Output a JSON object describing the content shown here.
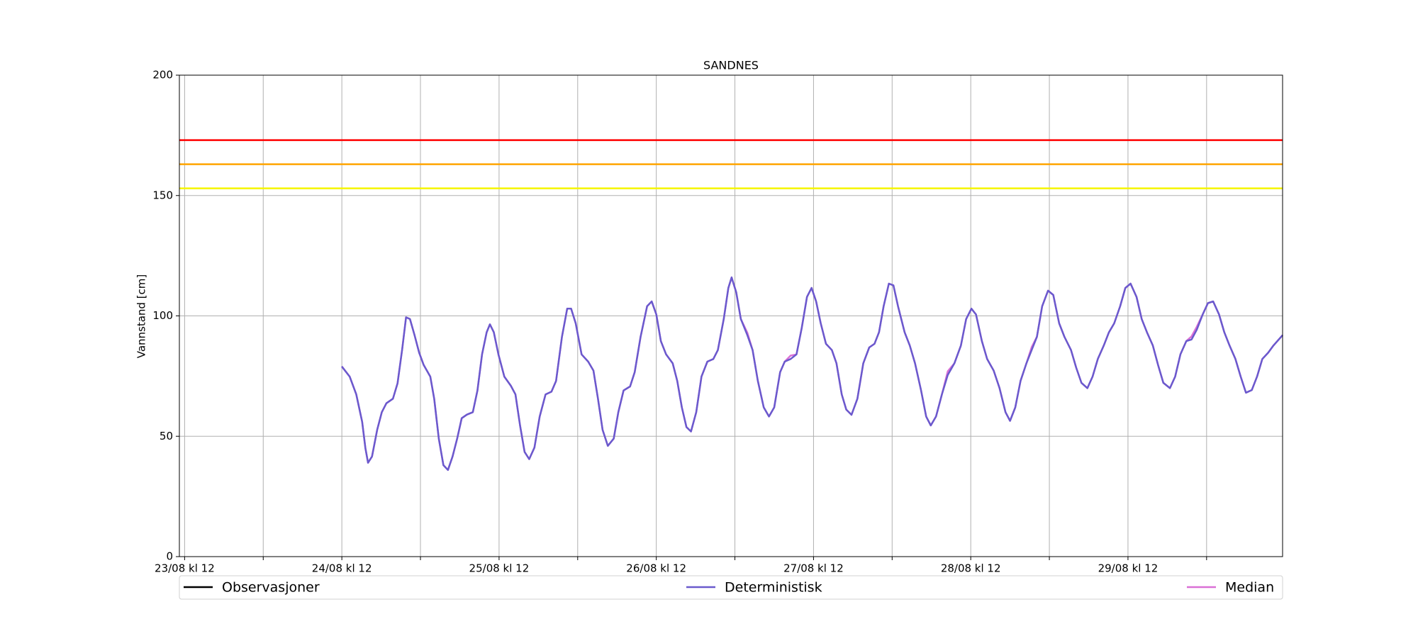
{
  "chart_data": {
    "type": "line",
    "title": "SANDNES",
    "y_label": "Vannstand [cm]",
    "xlim": [
      -0.8,
      167.6
    ],
    "ylim": [
      0,
      200
    ],
    "yticks": [
      0,
      50,
      100,
      150,
      200
    ],
    "xticks": [
      {
        "value": 0,
        "label": "23/08 kl 12"
      },
      {
        "value": 24,
        "label": "24/08 kl 12"
      },
      {
        "value": 48,
        "label": "25/08 kl 12"
      },
      {
        "value": 72,
        "label": "26/08 kl 12"
      },
      {
        "value": 96,
        "label": "27/08 kl 12"
      },
      {
        "value": 120,
        "label": "28/08 kl 12"
      },
      {
        "value": 144,
        "label": "29/08 kl 12"
      }
    ],
    "x_minor_ticks": [
      12,
      36,
      60,
      84,
      108,
      132,
      156
    ],
    "grid": true,
    "legend": "bottom",
    "thresholds": [
      {
        "value": 173,
        "color": "#ff0000"
      },
      {
        "value": 163,
        "color": "#ffa500"
      },
      {
        "value": 153,
        "color": "#f5f500"
      }
    ],
    "x": [
      24,
      25.2,
      26.2,
      27.1,
      27.6,
      28,
      28.6,
      29.4,
      30.1,
      30.8,
      31.8,
      32.5,
      33.2,
      33.8,
      34.4,
      35.1,
      35.8,
      36.5,
      37.5,
      38.1,
      38.8,
      39.5,
      40.2,
      40.9,
      41.6,
      42.3,
      43.1,
      44,
      44.7,
      45.4,
      46.1,
      46.6,
      47.2,
      47.9,
      48.8,
      49.8,
      50.5,
      51.2,
      51.9,
      52.6,
      53.4,
      54.2,
      55.1,
      56,
      56.7,
      57.6,
      58.4,
      59,
      59.7,
      60.6,
      61.6,
      62.4,
      63.1,
      63.8,
      64.6,
      65.5,
      66.2,
      67,
      68,
      68.7,
      69.6,
      70.6,
      71.3,
      72,
      72.7,
      73.5,
      74.5,
      75.2,
      75.9,
      76.6,
      77.3,
      78.1,
      78.9,
      79.8,
      80.7,
      81.4,
      82.3,
      83,
      83.5,
      84.2,
      84.9,
      85.9,
      86.7,
      87.5,
      88.4,
      89.2,
      90,
      90.9,
      91.6,
      92.5,
      93.4,
      94.2,
      95,
      95.7,
      96.4,
      97.1,
      97.9,
      98.8,
      99.5,
      100.3,
      101,
      101.8,
      102.7,
      103.6,
      104.5,
      105.3,
      106,
      106.7,
      107.5,
      108.2,
      108.9,
      109.9,
      110.7,
      111.5,
      112.4,
      113.2,
      113.9,
      114.7,
      115.6,
      116.5,
      117.5,
      118.5,
      119.3,
      120.1,
      120.8,
      121.7,
      122.5,
      123.5,
      124.4,
      125.3,
      126,
      126.8,
      127.6,
      128.5,
      129.3,
      130.1,
      130.9,
      131.8,
      132.6,
      133.5,
      134.3,
      135.3,
      136.1,
      136.9,
      137.8,
      138.6,
      139.4,
      140.3,
      141.1,
      141.9,
      142.8,
      143.6,
      144.4,
      145.3,
      146.1,
      146.9,
      147.8,
      148.6,
      149.4,
      150.4,
      151.2,
      152,
      152.9,
      153.7,
      154.5,
      155.4,
      156.2,
      157,
      157.9,
      158.7,
      159.5,
      160.4,
      161.2,
      162,
      162.9,
      163.7,
      164.5,
      165.4,
      166.2,
      167.6
    ],
    "series": [
      {
        "name": "Observasjoner",
        "color": "#000000",
        "x": [],
        "values": []
      },
      {
        "name": "Median",
        "color": "#da70d6",
        "values": [
          79,
          74.8,
          67.4,
          56,
          45,
          39,
          41.6,
          52.7,
          60,
          63.7,
          65.6,
          72,
          86,
          99.4,
          98.7,
          92,
          84.7,
          79.6,
          74.8,
          65.6,
          49,
          38,
          36,
          41.6,
          49,
          57.5,
          59,
          60,
          69,
          84,
          93.2,
          96.5,
          93.2,
          84,
          74.8,
          71,
          67.4,
          54.5,
          43.5,
          40.5,
          45.3,
          58.2,
          67.4,
          68.5,
          73,
          91.3,
          103,
          103,
          96.9,
          84,
          81,
          77.3,
          65.6,
          52.7,
          46,
          49,
          60,
          69,
          70.7,
          76.6,
          91.3,
          104,
          106,
          100.6,
          89.5,
          84,
          80.3,
          73,
          62,
          53.8,
          52,
          60,
          74.8,
          81,
          82.1,
          85.8,
          98.7,
          111.6,
          116,
          109.8,
          98.7,
          93,
          85.8,
          73,
          62,
          58.2,
          62,
          76.6,
          81,
          83.5,
          84,
          95,
          107.9,
          111.6,
          106,
          96.9,
          88.4,
          85.8,
          80.3,
          67.4,
          61.1,
          58.9,
          65.6,
          80.3,
          86.9,
          88.4,
          93.2,
          104,
          113.4,
          112.7,
          104,
          93.2,
          87.7,
          80.3,
          69.2,
          58.2,
          54.5,
          58.2,
          67.4,
          77,
          80.3,
          87.7,
          98.7,
          103,
          100.6,
          89.5,
          82.1,
          77.3,
          70,
          60,
          56.4,
          62,
          73,
          80.3,
          87,
          91.3,
          104,
          110.5,
          108.7,
          96.9,
          91.3,
          85.8,
          78.5,
          72.2,
          70,
          74.8,
          82.1,
          87.7,
          93.2,
          96.9,
          104,
          111.6,
          113.4,
          107.9,
          98.7,
          93.2,
          87.7,
          79.6,
          72.2,
          70,
          74.8,
          84,
          89.5,
          91.5,
          95.5,
          100.6,
          105.3,
          106,
          100.6,
          93.2,
          87.7,
          82.1,
          74.8,
          68.1,
          69.2,
          74.8,
          82.1,
          84.7,
          87.7,
          92
        ]
      },
      {
        "name": "Deterministisk",
        "color": "#6a5acd",
        "values": [
          79,
          74.8,
          67.4,
          56,
          45,
          39,
          41.6,
          52.7,
          60,
          63.7,
          65.6,
          72,
          86,
          99.4,
          98.7,
          92,
          84.7,
          79.6,
          74.8,
          65.6,
          49,
          38,
          36,
          41.6,
          49,
          57.5,
          59,
          60,
          69,
          84,
          93.2,
          96.5,
          93.2,
          84,
          74.8,
          71,
          67.4,
          54.5,
          43.5,
          40.5,
          45.3,
          58.2,
          67.4,
          68.5,
          73,
          91.3,
          103,
          103,
          96.9,
          84,
          81,
          77.3,
          65.6,
          52.7,
          46,
          49,
          60,
          69,
          70.7,
          76.6,
          91.3,
          104,
          106,
          100.6,
          89.5,
          84,
          80.3,
          73,
          62,
          53.8,
          52,
          60,
          74.8,
          81,
          82.1,
          85.8,
          98.7,
          111.6,
          116,
          109.8,
          98.7,
          92,
          85.8,
          73,
          62,
          58.2,
          62,
          76.6,
          81,
          82.1,
          84,
          95,
          107.9,
          111.6,
          106,
          96.9,
          88.4,
          85.8,
          80.3,
          67.4,
          61.1,
          58.9,
          65.6,
          80.3,
          86.9,
          88.4,
          93.2,
          104,
          113.4,
          112.7,
          104,
          93.2,
          87.7,
          80.3,
          69.2,
          58.2,
          54.5,
          58.2,
          67.4,
          75.5,
          80.3,
          87.7,
          98.7,
          103,
          100.6,
          89.5,
          82.1,
          77.3,
          70,
          60,
          56.4,
          62,
          73,
          80.3,
          85.8,
          91.3,
          104,
          110.5,
          108.7,
          96.9,
          91.3,
          85.8,
          78.5,
          72.2,
          70,
          74.8,
          82.1,
          87.7,
          93.2,
          96.9,
          104,
          111.6,
          113.4,
          107.9,
          98.7,
          93.2,
          87.7,
          79.6,
          72.2,
          70,
          74.8,
          84,
          89.5,
          90.2,
          94.3,
          100.6,
          105.3,
          106,
          100.6,
          93.2,
          87.7,
          82.1,
          74.8,
          68.1,
          69.2,
          74.8,
          82.1,
          84.7,
          87.7,
          92
        ]
      }
    ]
  }
}
